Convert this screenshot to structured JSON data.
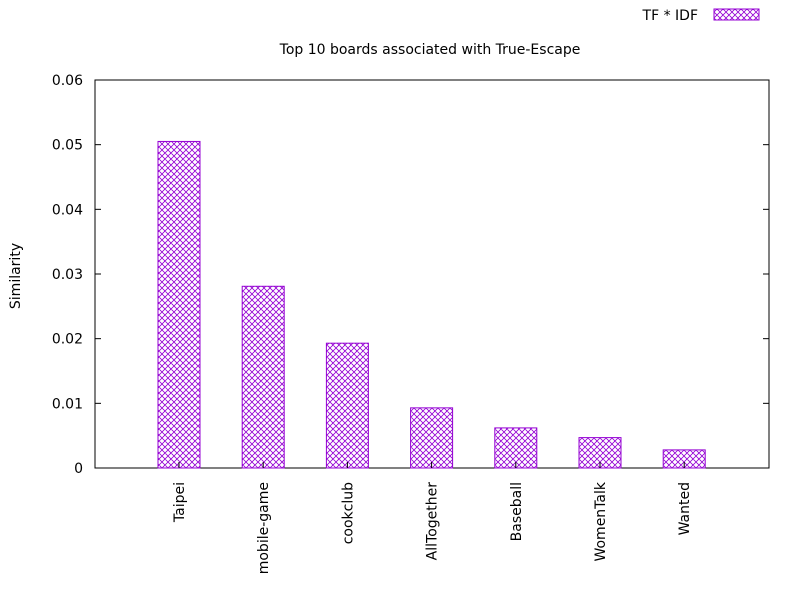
{
  "chart_data": {
    "type": "bar",
    "title": "Top 10 boards associated with True-Escape",
    "xlabel": "",
    "ylabel": "Similarity",
    "ylim": [
      0,
      0.06
    ],
    "yticks": [
      "0",
      "0.01",
      "0.02",
      "0.03",
      "0.04",
      "0.05",
      "0.06"
    ],
    "categories": [
      "Taipei",
      "mobile-game",
      "cookclub",
      "AllTogether",
      "Baseball",
      "WomenTalk",
      "Wanted"
    ],
    "series": [
      {
        "name": "TF * IDF",
        "values": [
          0.0505,
          0.0281,
          0.0193,
          0.0093,
          0.0062,
          0.0047,
          0.0028
        ]
      }
    ],
    "grid": false,
    "legend_position": "top-right",
    "bar_color": "#9400d3",
    "bar_pattern": "crosshatch"
  }
}
